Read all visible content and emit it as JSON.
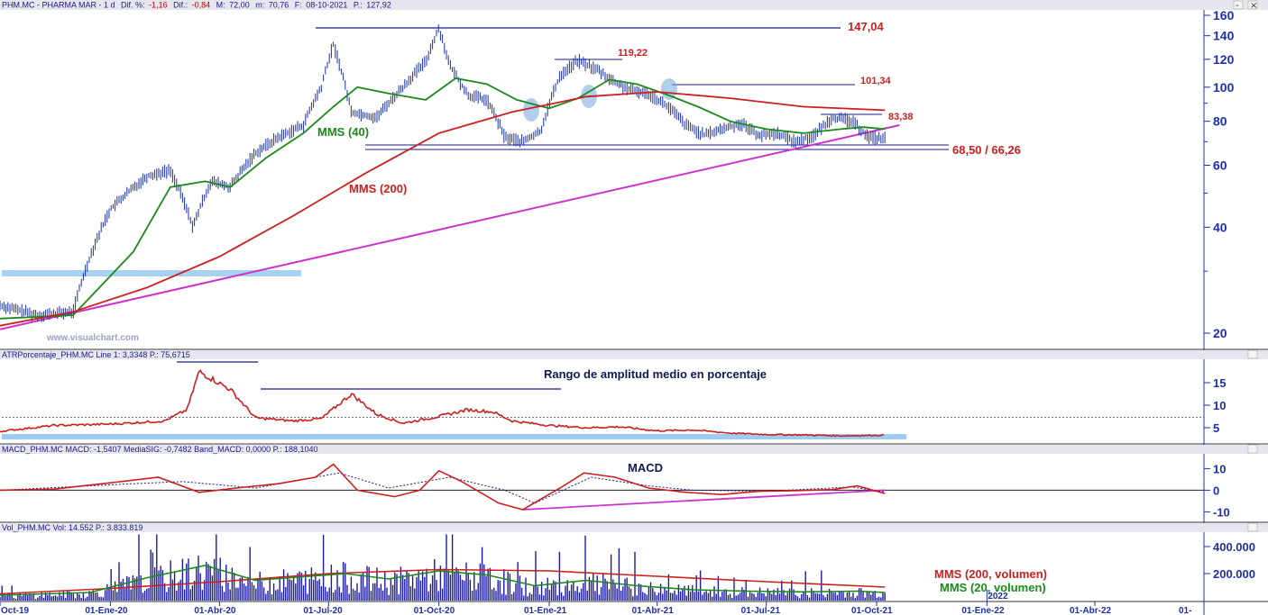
{
  "header": {
    "symbol": "PHM.MC - PHARMA MAR - 1 d",
    "dif_pct_label": "Dif. %:",
    "dif_pct": "-1,16",
    "dif_label": "Dif.:",
    "dif": "-0,84",
    "max_label": "M:",
    "max": "72,00",
    "min_label": "m:",
    "min": "70,76",
    "date_label": "F:",
    "date": "08-10-2021",
    "p_label": "P.:",
    "p": "127,92"
  },
  "watermark": "www.visualchart.com",
  "window_buttons": {
    "minimize": "-",
    "close": "×"
  },
  "chart_data": [
    {
      "type": "line",
      "panel": "price",
      "scale": "log",
      "ylim": [
        18,
        162
      ],
      "yticks": [
        "160",
        "140",
        "120",
        "100",
        "80",
        "60",
        "40",
        "20"
      ],
      "xticks": [
        "Oct-19",
        "01-Ene-20",
        "01-Abr-20",
        "01-Jul-20",
        "01-Oct-20",
        "01-Ene-21",
        "01-Abr-21",
        "01-Jul-21",
        "01-Oct-21",
        "01-Ene-22",
        "01-Abr-22",
        "01-"
      ],
      "x_extra_label": "2022",
      "series": [
        {
          "name": "PHM.MC",
          "color": "#1a2fa8",
          "x": [
            "2019-10-01",
            "2019-11-01",
            "2019-12-01",
            "2020-01-01",
            "2020-02-01",
            "2020-02-20",
            "2020-03-10",
            "2020-03-25",
            "2020-04-10",
            "2020-05-01",
            "2020-05-20",
            "2020-06-10",
            "2020-06-25",
            "2020-07-05",
            "2020-07-20",
            "2020-08-10",
            "2020-09-01",
            "2020-09-20",
            "2020-10-01",
            "2020-10-10",
            "2020-10-25",
            "2020-11-10",
            "2020-11-25",
            "2020-12-10",
            "2020-12-25",
            "2021-01-10",
            "2021-01-25",
            "2021-02-10",
            "2021-02-25",
            "2021-03-10",
            "2021-03-25",
            "2021-04-10",
            "2021-04-25",
            "2021-05-10",
            "2021-05-25",
            "2021-06-10",
            "2021-06-25",
            "2021-07-10",
            "2021-07-25",
            "2021-08-10",
            "2021-08-25",
            "2021-09-10",
            "2021-09-25",
            "2021-10-08"
          ],
          "values": [
            24,
            22.5,
            23,
            45,
            56,
            58,
            40,
            54,
            52,
            65,
            72,
            78,
            100,
            132,
            85,
            82,
            100,
            118,
            147,
            115,
            95,
            92,
            72,
            70,
            75,
            108,
            119,
            112,
            103,
            98,
            96,
            88,
            78,
            73,
            76,
            79,
            73,
            74,
            70,
            73,
            82,
            80,
            72,
            71.5
          ]
        },
        {
          "name": "MMS (40)",
          "color": "#1a8a1a",
          "x": [
            "2019-10-01",
            "2019-12-01",
            "2020-01-20",
            "2020-02-20",
            "2020-03-20",
            "2020-04-10",
            "2020-05-10",
            "2020-06-10",
            "2020-07-05",
            "2020-07-25",
            "2020-08-20",
            "2020-09-20",
            "2020-10-15",
            "2020-11-10",
            "2020-12-05",
            "2021-01-01",
            "2021-01-25",
            "2021-02-20",
            "2021-03-15",
            "2021-04-10",
            "2021-05-05",
            "2021-06-01",
            "2021-07-01",
            "2021-08-01",
            "2021-09-01",
            "2021-09-20",
            "2021-10-08"
          ],
          "values": [
            22,
            22.5,
            34,
            52,
            54,
            52,
            63,
            74,
            88,
            100,
            96,
            92,
            106,
            102,
            92,
            87,
            93,
            105,
            102,
            95,
            88,
            80,
            76,
            74,
            76,
            77,
            76
          ]
        },
        {
          "name": "MMS (200)",
          "color": "#cc1f1f",
          "x": [
            "2019-10-01",
            "2019-12-01",
            "2020-02-01",
            "2020-04-01",
            "2020-06-01",
            "2020-08-01",
            "2020-10-01",
            "2020-12-01",
            "2021-02-01",
            "2021-04-01",
            "2021-06-01",
            "2021-08-01",
            "2021-10-08"
          ],
          "values": [
            21,
            23,
            27,
            33,
            43,
            57,
            74,
            85,
            94,
            97,
            93,
            88,
            86
          ]
        },
        {
          "name": "trendline",
          "color": "#cc33cc",
          "x": [
            "2019-10-01",
            "2021-10-20"
          ],
          "values": [
            20.5,
            78
          ]
        }
      ],
      "annotations": [
        "147,04",
        "119,22",
        "101,34",
        "83,38",
        "68,50 / 66,26",
        "MMS (40)",
        "MMS (200)"
      ]
    },
    {
      "type": "line",
      "panel": "atr",
      "header": "ATRPorcentaje_PHM.MC  Line 1: 3,3348  P.: 75,6715",
      "title": "Rango de amplitud medio en porcentaje",
      "ylim": [
        2,
        20
      ],
      "yticks": [
        "15",
        "10",
        "5"
      ],
      "series": [
        {
          "name": "ATR %",
          "color": "#cc1f1f",
          "x": [
            "2019-10-01",
            "2019-11-15",
            "2020-01-01",
            "2020-02-15",
            "2020-03-05",
            "2020-03-15",
            "2020-04-10",
            "2020-05-01",
            "2020-06-01",
            "2020-06-25",
            "2020-07-20",
            "2020-08-10",
            "2020-09-01",
            "2020-10-01",
            "2020-10-25",
            "2020-11-15",
            "2020-12-01",
            "2021-01-01",
            "2021-02-01",
            "2021-03-01",
            "2021-04-01",
            "2021-05-01",
            "2021-06-01",
            "2021-07-01",
            "2021-08-01",
            "2021-09-01",
            "2021-10-08"
          ],
          "values": [
            4.2,
            5.5,
            5.8,
            6.5,
            9.0,
            17.5,
            13.5,
            7.2,
            6.5,
            7.0,
            12.5,
            8.0,
            6.0,
            7.5,
            9.0,
            8.5,
            6.5,
            5.5,
            5.0,
            5.2,
            4.3,
            4.5,
            3.8,
            3.5,
            3.4,
            3.2,
            3.33
          ]
        }
      ],
      "hlines": [
        7.3
      ]
    },
    {
      "type": "line",
      "panel": "macd",
      "header": "MACD_PHM.MC  MACD: -1,5407  MediaSIG: -0,7482  Band_MACD: 0,0000  P.: 188,1040",
      "title": "MACD",
      "ylim": [
        -14,
        16
      ],
      "yticks": [
        "10",
        "0",
        "-10"
      ],
      "series": [
        {
          "name": "MACD",
          "color": "#cc1f1f",
          "x": [
            "2019-10-01",
            "2019-11-15",
            "2020-01-10",
            "2020-02-10",
            "2020-03-15",
            "2020-04-15",
            "2020-05-20",
            "2020-06-20",
            "2020-07-05",
            "2020-07-25",
            "2020-08-25",
            "2020-09-15",
            "2020-10-01",
            "2020-10-20",
            "2020-11-20",
            "2020-12-10",
            "2021-01-10",
            "2021-01-30",
            "2021-02-25",
            "2021-03-25",
            "2021-04-25",
            "2021-05-25",
            "2021-06-25",
            "2021-07-25",
            "2021-08-25",
            "2021-09-15",
            "2021-10-08"
          ],
          "values": [
            0,
            0.5,
            4,
            6,
            -1,
            1,
            3,
            6,
            12,
            0,
            -3,
            0,
            9,
            4,
            -6,
            -9,
            1,
            8,
            6,
            1,
            -1,
            -2,
            -0.5,
            -0.2,
            0.3,
            2,
            -1.54
          ]
        },
        {
          "name": "MediaSIG",
          "color": "#1a1a8c",
          "x": [
            "2019-10-01",
            "2020-01-20",
            "2020-03-01",
            "2020-05-01",
            "2020-07-10",
            "2020-08-20",
            "2020-10-10",
            "2020-11-25",
            "2020-12-20",
            "2021-02-05",
            "2021-03-25",
            "2021-05-01",
            "2021-07-01",
            "2021-09-10",
            "2021-10-08"
          ],
          "values": [
            0,
            3,
            4,
            1,
            8,
            1,
            6,
            0,
            -6,
            6,
            2,
            0,
            -0.5,
            1.5,
            -0.75
          ]
        },
        {
          "name": "trendline",
          "color": "#cc33cc",
          "x": [
            "2020-12-10",
            "2021-10-08"
          ],
          "values": [
            -9,
            0
          ]
        }
      ]
    },
    {
      "type": "bar",
      "panel": "volume",
      "header": "Vol_PHM.MC  Vol: 14.552  P.: 3.833.819",
      "ylim": [
        0,
        500000
      ],
      "yticks": [
        "400.000",
        "200.000"
      ],
      "series": [
        {
          "name": "MMS (200, volumen)",
          "color": "#cc1f1f",
          "x": [
            "2019-10-01",
            "2020-01-01",
            "2020-04-01",
            "2020-07-01",
            "2020-10-01",
            "2021-01-01",
            "2021-04-01",
            "2021-07-01",
            "2021-10-08"
          ],
          "values": [
            50000,
            90000,
            140000,
            200000,
            230000,
            220000,
            180000,
            140000,
            100000
          ]
        },
        {
          "name": "MMS (20, volumen)",
          "color": "#1a8a1a",
          "x": [
            "2019-10-01",
            "2019-12-15",
            "2020-02-01",
            "2020-03-20",
            "2020-05-01",
            "2020-06-15",
            "2020-07-15",
            "2020-08-20",
            "2020-10-01",
            "2020-11-10",
            "2020-12-20",
            "2021-02-01",
            "2021-03-15",
            "2021-05-01",
            "2021-06-15",
            "2021-08-01",
            "2021-09-15",
            "2021-10-08"
          ],
          "values": [
            40000,
            60000,
            170000,
            260000,
            150000,
            180000,
            200000,
            160000,
            220000,
            190000,
            110000,
            150000,
            110000,
            80000,
            70000,
            65000,
            70000,
            60000
          ]
        }
      ]
    }
  ]
}
